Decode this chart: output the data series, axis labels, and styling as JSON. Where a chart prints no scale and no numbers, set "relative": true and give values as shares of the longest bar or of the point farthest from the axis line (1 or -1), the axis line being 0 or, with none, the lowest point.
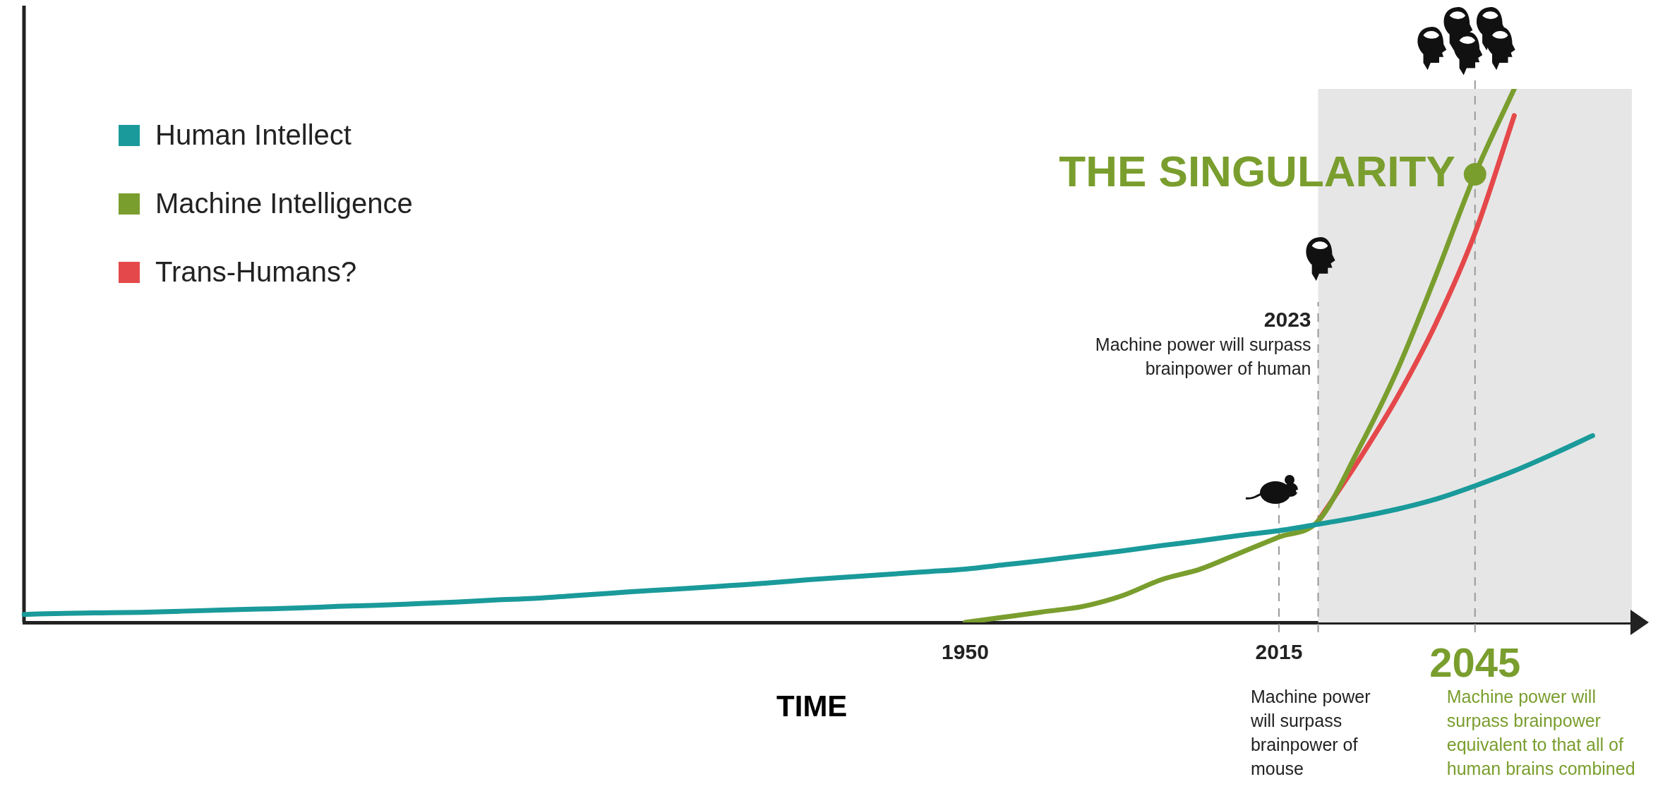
{
  "chart_data": {
    "type": "line",
    "relative": true,
    "xlabel": "TIME",
    "categories": [
      null,
      null,
      null,
      null,
      null,
      null,
      null,
      null,
      null,
      null,
      null,
      null,
      null,
      null,
      null,
      null,
      null,
      null,
      null,
      null,
      null,
      null,
      null,
      null,
      "1950",
      null,
      null,
      null,
      null,
      null,
      null,
      null,
      "2015",
      null,
      null,
      null,
      null,
      "2045",
      null,
      null,
      null,
      null
    ],
    "series": [
      {
        "name": "Human Intellect",
        "color": "#1a9a9a",
        "values": [
          0.015,
          0.017,
          0.018,
          0.019,
          0.021,
          0.023,
          0.025,
          0.027,
          0.03,
          0.032,
          0.035,
          0.038,
          0.042,
          0.045,
          0.05,
          0.055,
          0.06,
          0.064,
          0.069,
          0.074,
          0.08,
          0.085,
          0.09,
          0.095,
          0.1,
          0.108,
          0.116,
          0.125,
          0.134,
          0.144,
          0.153,
          0.163,
          0.172,
          0.184,
          0.197,
          0.212,
          0.231,
          0.256,
          0.284,
          0.316,
          0.35,
          null
        ]
      },
      {
        "name": "Machine Intelligence",
        "color": "#7a9e2e",
        "values": [
          null,
          null,
          null,
          null,
          null,
          null,
          null,
          null,
          null,
          null,
          null,
          null,
          null,
          null,
          null,
          null,
          null,
          null,
          null,
          null,
          null,
          null,
          null,
          null,
          0,
          0.01,
          0.02,
          0.03,
          0.05,
          0.08,
          0.1,
          0.13,
          0.16,
          0.19,
          0.32,
          0.47,
          0.65,
          0.84,
          1,
          null,
          null,
          null
        ]
      },
      {
        "name": "Trans-Humans?",
        "color": "#e5484a",
        "values": [
          null,
          null,
          null,
          null,
          null,
          null,
          null,
          null,
          null,
          null,
          null,
          null,
          null,
          null,
          null,
          null,
          null,
          null,
          null,
          null,
          null,
          null,
          null,
          null,
          null,
          null,
          null,
          null,
          null,
          null,
          null,
          null,
          null,
          0.19,
          0.3,
          0.42,
          0.56,
          0.73,
          0.95,
          null,
          null,
          null
        ]
      }
    ],
    "ref_lines": [
      {
        "axis": "x",
        "value": "2015",
        "color": "#999999",
        "line_style": "dashed"
      },
      {
        "axis": "x",
        "value": "2045",
        "color": "#999999",
        "line_style": "dashed"
      }
    ],
    "annotations": [
      {
        "text": "THE SINGULARITY",
        "x": "2045",
        "y": 0.84
      },
      "2023",
      "Machine power will surpass brainpower of human",
      "Machine power will surpass brainpower of mouse",
      "Machine power will surpass brainpower equivalent to that all of human brains combined"
    ],
    "legend": "top left",
    "grid": false,
    "marker": "none",
    "line_style": "solid"
  }
}
